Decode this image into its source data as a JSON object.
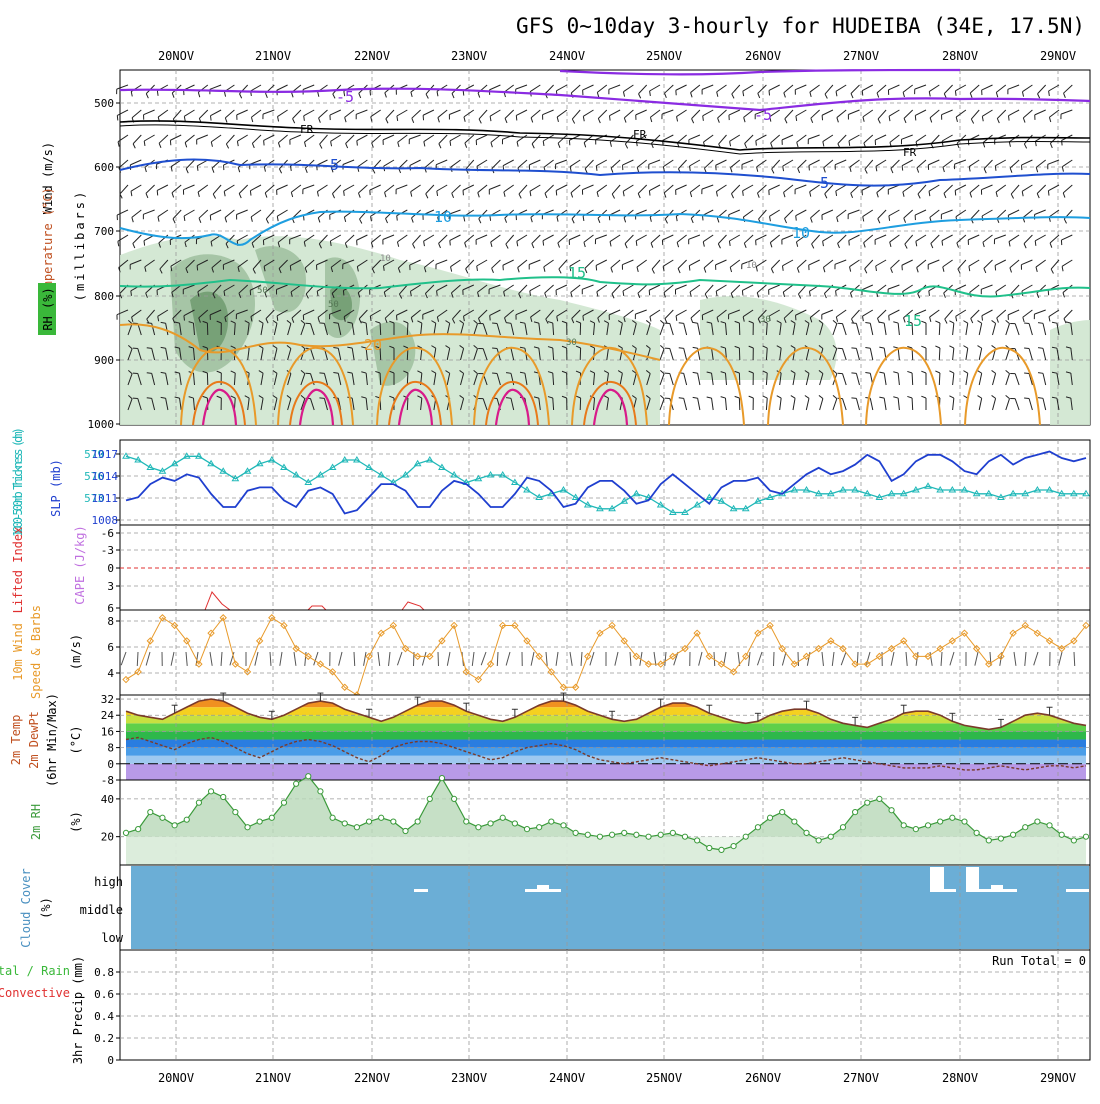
{
  "title": "GFS 0~10day 3-hourly for HUDEIBA (34E, 17.5N)",
  "colors": {
    "temp_neg5": "#8a2be2",
    "freezing": "#000000",
    "temp5": "#1f4fcf",
    "temp10": "#1e9ee0",
    "temp15": "#20c08a",
    "temp20": "#e89a2a",
    "temp25": "#e87a1a",
    "temp30": "#d81a8a",
    "rh": "#b8d8b8",
    "thickness": "#20b8b8",
    "slp": "#1f3fcf",
    "lifted": "#e03030",
    "wind": "#e89a2a",
    "rh2m": "#3a9a3a",
    "cloud": "#6baed6",
    "precip_rain": "#3ab83a",
    "precip_conv": "#e03030"
  },
  "x_axis": {
    "day_labels": [
      "20NOV",
      "21NOV",
      "22NOV",
      "23NOV",
      "24NOV",
      "25NOV",
      "26NOV",
      "27NOV",
      "28NOV",
      "29NOV"
    ]
  },
  "panels": {
    "upper_air": {
      "labels": {
        "wind": "Wind (m/s)",
        "temperature": "Temperature (°C)",
        "rh": "RH (%)",
        "pressure": "(millibars)"
      },
      "y_ticks": [
        "500",
        "600",
        "700",
        "800",
        "900",
        "1000"
      ],
      "contour_labels": {
        "neg5": "-5",
        "fr": "FR",
        "five": "5",
        "ten": "10",
        "fifteen": "15",
        "twenty": "20",
        "rh_fifty": "50",
        "rh_thirty": "30",
        "temp_ten_small": "10"
      }
    },
    "slp": {
      "labels": {
        "thickness": "1000-500mb Thickness (dm)",
        "slp": "SLP (mb)"
      },
      "left_ticks": [
        "579",
        "576",
        "573"
      ],
      "right_ticks": [
        "1017",
        "1014",
        "1011",
        "1008"
      ]
    },
    "lifted": {
      "labels": {
        "lifted": "Lifted Index",
        "cape": "CAPE (J/kg)"
      },
      "ticks": [
        "-6",
        "-3",
        "0",
        "3",
        "6"
      ]
    },
    "wind10m": {
      "labels": {
        "main": "10m Wind",
        "sub": "Speed & Barbs",
        "unit": "(m/s)"
      },
      "ticks": [
        "8",
        "6",
        "4"
      ]
    },
    "temp2m": {
      "labels": {
        "l1": "2m Temp",
        "l2": "2m DewPt",
        "l3": "(6hr Min/Max)",
        "unit": "(°C)"
      },
      "ticks": [
        "32",
        "24",
        "16",
        "8",
        "0",
        "-8"
      ]
    },
    "rh2m": {
      "labels": {
        "main": "2m RH",
        "unit": "(%)"
      },
      "ticks": [
        "40",
        "20"
      ]
    },
    "cloud": {
      "labels": {
        "main": "Cloud Cover",
        "unit": "(%)"
      },
      "levels": [
        "high",
        "middle",
        "low"
      ]
    },
    "precip": {
      "labels": {
        "l1": "Total / Rain",
        "l2": "Convective",
        "l3": "3hr Precip (mm)"
      },
      "ticks": [
        "0.8",
        "0.6",
        "0.4",
        "0.2",
        "0"
      ],
      "run_total": "Run Total = 0"
    }
  },
  "chart_data": [
    {
      "type": "line",
      "title": "1000-500mb Thickness (dm) / SLP (mb)",
      "series": [
        {
          "name": "1000-500mb Thickness (dm)",
          "axis": "left",
          "ylim": [
            571,
            581
          ],
          "values": [
            579.5,
            579.0,
            578.0,
            577.5,
            578.5,
            579.5,
            579.5,
            578.5,
            577.5,
            576.5,
            577.5,
            578.5,
            579.0,
            578.0,
            577.0,
            576.0,
            577.0,
            578.0,
            579.0,
            579.0,
            578.0,
            577.0,
            576.0,
            577.0,
            578.5,
            579.0,
            578.0,
            577.0,
            576.0,
            576.5,
            577.0,
            577.0,
            576.0,
            575.0,
            574.0,
            574.5,
            575.0,
            574.0,
            573.0,
            572.5,
            572.5,
            573.5,
            574.5,
            574.0,
            573.0,
            572.0,
            572.0,
            573.0,
            574.0,
            573.5,
            572.5,
            572.5,
            573.5,
            574.0,
            574.5,
            575.0,
            575.0,
            574.5,
            574.5,
            575.0,
            575.0,
            574.5,
            574.0,
            574.5,
            574.5,
            575.0,
            575.5,
            575.0,
            575.0,
            575.0,
            574.5,
            574.5,
            574.0,
            574.5,
            574.5,
            575.0,
            575.0,
            574.5,
            574.5,
            574.5
          ]
        },
        {
          "name": "SLP (mb)",
          "axis": "right",
          "ylim": [
            1007,
            1018.5
          ],
          "values": [
            1010.0,
            1010.5,
            1012.5,
            1013.5,
            1013.0,
            1014.0,
            1013.5,
            1011.0,
            1009.0,
            1009.0,
            1011.5,
            1012.0,
            1012.0,
            1010.0,
            1009.0,
            1011.5,
            1012.0,
            1011.0,
            1008.0,
            1008.5,
            1010.5,
            1012.5,
            1012.5,
            1011.5,
            1009.0,
            1009.0,
            1011.5,
            1013.0,
            1012.5,
            1011.0,
            1009.0,
            1009.0,
            1011.0,
            1013.5,
            1013.0,
            1011.5,
            1009.0,
            1009.5,
            1012.0,
            1013.0,
            1013.0,
            1011.5,
            1009.5,
            1010.0,
            1012.5,
            1014.0,
            1012.5,
            1011.0,
            1009.5,
            1012.0,
            1013.0,
            1013.0,
            1013.5,
            1011.5,
            1011.0,
            1012.5,
            1014.0,
            1015.0,
            1014.0,
            1014.5,
            1015.5,
            1017.0,
            1016.0,
            1013.0,
            1014.0,
            1016.0,
            1017.0,
            1017.0,
            1016.0,
            1014.5,
            1014.0,
            1016.0,
            1017.0,
            1015.5,
            1016.5,
            1017.0,
            1017.5,
            1016.5,
            1016.0,
            1016.5
          ]
        }
      ]
    },
    {
      "type": "line",
      "title": "10m Wind Speed (m/s)",
      "ylim": [
        3,
        8.5
      ],
      "values": [
        4.0,
        4.5,
        6.5,
        8.0,
        7.5,
        6.5,
        5.0,
        7.0,
        8.0,
        5.0,
        4.5,
        6.5,
        8.0,
        7.5,
        6.0,
        5.5,
        5.0,
        4.5,
        3.5,
        3.0,
        5.5,
        7.0,
        7.5,
        6.0,
        5.5,
        5.5,
        6.5,
        7.5,
        4.5,
        4.0,
        5.0,
        7.5,
        7.5,
        6.5,
        5.5,
        4.5,
        3.5,
        3.5,
        5.5,
        7.0,
        7.5,
        6.5,
        5.5,
        5.0,
        5.0,
        5.5,
        6.0,
        7.0,
        5.5,
        5.0,
        4.5,
        5.5,
        7.0,
        7.5,
        6.0,
        5.0,
        5.5,
        6.0,
        6.5,
        6.0,
        5.0,
        5.0,
        5.5,
        6.0,
        6.5,
        5.5,
        5.5,
        6.0,
        6.5,
        7.0,
        6.0,
        5.0,
        5.5,
        7.0,
        7.5,
        7.0,
        6.5,
        6.0,
        6.5,
        7.5
      ]
    },
    {
      "type": "line",
      "title": "2m Temp / 2m DewPt (°C)",
      "ylim": [
        -8,
        34
      ],
      "series": [
        {
          "name": "2m Temp",
          "values": [
            26,
            24,
            23,
            22,
            25,
            28,
            31,
            32,
            31,
            28,
            25,
            23,
            22,
            24,
            27,
            30,
            31,
            30,
            27,
            25,
            23,
            21,
            23,
            26,
            29,
            31,
            31,
            29,
            26,
            24,
            22,
            21,
            23,
            26,
            29,
            31,
            31,
            29,
            26,
            24,
            22,
            21,
            22,
            25,
            28,
            30,
            30,
            28,
            25,
            23,
            21,
            20,
            21,
            24,
            26,
            27,
            27,
            25,
            22,
            20,
            19,
            18,
            20,
            22,
            25,
            26,
            26,
            24,
            21,
            19,
            18,
            17,
            18,
            21,
            24,
            25,
            24,
            22,
            20,
            19
          ]
        },
        {
          "name": "2m DewPt",
          "values": [
            12,
            13,
            11,
            9,
            7,
            10,
            12,
            13,
            11,
            8,
            5,
            3,
            6,
            9,
            11,
            12,
            11,
            9,
            6,
            3,
            1,
            4,
            8,
            10,
            11,
            11,
            10,
            8,
            6,
            4,
            2,
            3,
            6,
            8,
            9,
            10,
            9,
            7,
            4,
            2,
            1,
            0,
            1,
            2,
            3,
            2,
            1,
            0,
            -1,
            0,
            1,
            2,
            3,
            2,
            1,
            0,
            0,
            1,
            2,
            3,
            2,
            1,
            0,
            -1,
            -2,
            -2,
            -2,
            -1,
            -2,
            -3,
            -3,
            -2,
            -1,
            -2,
            -3,
            -2,
            -1,
            -1,
            -2,
            -1
          ]
        }
      ]
    },
    {
      "type": "area",
      "title": "2m RH (%)",
      "ylim": [
        5,
        50
      ],
      "values": [
        22,
        24,
        33,
        30,
        26,
        29,
        38,
        44,
        41,
        33,
        25,
        28,
        30,
        38,
        48,
        52,
        44,
        30,
        27,
        25,
        28,
        30,
        28,
        23,
        28,
        40,
        51,
        40,
        28,
        25,
        27,
        30,
        27,
        24,
        25,
        28,
        26,
        22,
        21,
        20,
        21,
        22,
        21,
        20,
        21,
        22,
        20,
        18,
        14,
        13,
        15,
        20,
        25,
        30,
        33,
        28,
        22,
        18,
        20,
        25,
        33,
        38,
        40,
        34,
        26,
        24,
        26,
        28,
        30,
        28,
        22,
        18,
        19,
        21,
        25,
        28,
        26,
        21,
        18,
        20
      ]
    },
    {
      "type": "bar",
      "title": "Cloud Cover (%)",
      "series": [
        {
          "name": "high",
          "values": [
            0,
            0,
            0,
            0,
            0,
            0,
            0,
            0,
            0,
            0,
            0,
            0,
            0,
            0,
            0,
            0,
            0,
            0,
            0,
            0,
            0,
            0,
            0,
            0,
            0,
            0,
            0,
            0,
            0,
            0,
            0,
            0,
            0,
            0,
            0,
            0,
            0,
            0,
            0,
            0,
            0,
            0,
            0,
            0,
            0,
            0,
            0,
            0,
            0,
            0,
            0,
            0,
            0,
            0,
            0,
            0,
            0,
            0,
            0,
            0,
            0,
            0,
            0,
            0,
            0,
            0,
            0,
            0,
            0,
            0,
            0,
            0,
            0,
            0,
            0,
            0,
            0,
            0,
            0,
            0
          ]
        }
      ]
    },
    {
      "type": "bar",
      "title": "3hr Precip (mm)",
      "ylim": [
        0,
        1
      ],
      "values": [
        0,
        0,
        0,
        0,
        0,
        0,
        0,
        0,
        0,
        0,
        0,
        0,
        0,
        0,
        0,
        0,
        0,
        0,
        0,
        0,
        0,
        0,
        0,
        0,
        0,
        0,
        0,
        0,
        0,
        0,
        0,
        0,
        0,
        0,
        0,
        0,
        0,
        0,
        0,
        0,
        0,
        0,
        0,
        0,
        0,
        0,
        0,
        0,
        0,
        0,
        0,
        0,
        0,
        0,
        0,
        0,
        0,
        0,
        0,
        0,
        0,
        0,
        0,
        0,
        0,
        0,
        0,
        0,
        0,
        0,
        0,
        0,
        0,
        0,
        0,
        0,
        0,
        0,
        0,
        0
      ]
    }
  ]
}
